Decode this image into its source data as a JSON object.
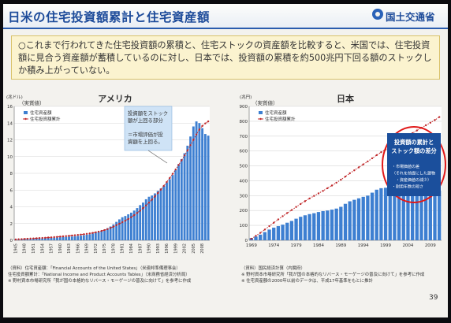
{
  "slide": {
    "title": "日米の住宅投資額累計と住宅資産額",
    "ministry": "国土交通省",
    "summary": "○これまで行われてきた住宅投資額の累積と、住宅ストックの資産額を比較すると、米国では、住宅投資額に見合う資産額が蓄積しているのに対し、日本では、投資額の累積を約500兆円下回る額のストックしか積み上がっていない。",
    "page_number": "39",
    "sources_left": [
      "（資料）住宅資産額：「Financial Accounts of the United States」（米連邦準備理事会）",
      "住宅投資額累計：「National Income and Product Accounts Tables」（米商務省経済分析局）",
      "※ 野村資本市場研究所「我が国の本格的なリバース・モーゲージの普及に向けて」を参考に作成"
    ],
    "sources_right": [
      "（資料）国民経済計算（内閣府）",
      "※ 野村資本市場研究所「我が国の本格的なリバース・モーゲージの普及に向けて」を参考に作成",
      "※ 住宅資産額の2000年以前のデータは、平成17年基準をもとに推計"
    ]
  },
  "chart_data": [
    {
      "type": "bar",
      "title": "アメリカ",
      "subtitle": "（実質値）",
      "unit_label": "(兆ドル)",
      "ylim": [
        0,
        16
      ],
      "y_ticks": [
        "0",
        "2",
        "4",
        "6",
        "8",
        "10",
        "12",
        "14",
        "16"
      ],
      "x_ticks": [
        "1945",
        "1948",
        "1951",
        "1954",
        "1957",
        "1960",
        "1963",
        "1966",
        "1969",
        "1972",
        "1975",
        "1978",
        "1981",
        "1984",
        "1987",
        "1990",
        "1993",
        "1996",
        "1999",
        "2002",
        "2005",
        "2008"
      ],
      "grid": true,
      "legend_position": "top-left",
      "x": [
        1945,
        1946,
        1947,
        1948,
        1949,
        1950,
        1951,
        1952,
        1953,
        1954,
        1955,
        1956,
        1957,
        1958,
        1959,
        1960,
        1961,
        1962,
        1963,
        1964,
        1965,
        1966,
        1967,
        1968,
        1969,
        1970,
        1971,
        1972,
        1973,
        1974,
        1975,
        1976,
        1977,
        1978,
        1979,
        1980,
        1981,
        1982,
        1983,
        1984,
        1985,
        1986,
        1987,
        1988,
        1989,
        1990,
        1991,
        1992,
        1993,
        1994,
        1995,
        1996,
        1997,
        1998,
        1999,
        2000,
        2001,
        2002,
        2003,
        2004,
        2005,
        2006,
        2007,
        2008,
        2009,
        2010
      ],
      "series": [
        {
          "name": "住宅資産額",
          "kind": "bar",
          "color": "#3d7fd1",
          "values": [
            0.1,
            0.11,
            0.12,
            0.13,
            0.15,
            0.16,
            0.18,
            0.2,
            0.21,
            0.23,
            0.25,
            0.27,
            0.29,
            0.31,
            0.33,
            0.36,
            0.38,
            0.4,
            0.43,
            0.45,
            0.48,
            0.52,
            0.55,
            0.6,
            0.66,
            0.72,
            0.8,
            0.9,
            1.02,
            1.15,
            1.28,
            1.45,
            1.65,
            1.9,
            2.2,
            2.5,
            2.75,
            2.9,
            3.1,
            3.3,
            3.55,
            3.85,
            4.2,
            4.5,
            4.9,
            5.2,
            5.35,
            5.6,
            5.9,
            6.2,
            6.5,
            6.9,
            7.3,
            7.8,
            8.4,
            9.1,
            9.7,
            10.4,
            11.3,
            12.4,
            13.6,
            14.2,
            14.0,
            13.4,
            12.7,
            12.5
          ]
        },
        {
          "name": "住宅投資額累計",
          "kind": "line",
          "color": "#c0282a",
          "values": [
            0.1,
            0.12,
            0.14,
            0.16,
            0.18,
            0.2,
            0.22,
            0.24,
            0.26,
            0.28,
            0.3,
            0.33,
            0.35,
            0.38,
            0.41,
            0.44,
            0.47,
            0.5,
            0.53,
            0.57,
            0.6,
            0.64,
            0.68,
            0.72,
            0.77,
            0.82,
            0.88,
            0.95,
            1.03,
            1.12,
            1.22,
            1.34,
            1.48,
            1.63,
            1.8,
            1.98,
            2.16,
            2.34,
            2.54,
            2.76,
            3.0,
            3.26,
            3.54,
            3.84,
            4.16,
            4.5,
            4.86,
            5.24,
            5.64,
            6.06,
            6.5,
            6.96,
            7.44,
            7.94,
            8.46,
            9.0,
            9.56,
            10.14,
            10.74,
            11.36,
            12.0,
            12.64,
            13.22,
            13.66,
            13.96,
            14.2
          ]
        }
      ],
      "annotations": [
        "投資額をストック額が上回る部分",
        "＝市場評価が投資額を上回る。"
      ]
    },
    {
      "type": "bar",
      "title": "日本",
      "subtitle": "（実質値）",
      "unit_label": "(兆円)",
      "ylim": [
        0,
        900
      ],
      "y_ticks": [
        "0",
        "100",
        "200",
        "300",
        "400",
        "500",
        "600",
        "700",
        "800",
        "900"
      ],
      "x_ticks": [
        "1969",
        "1974",
        "1979",
        "1984",
        "1989",
        "1994",
        "1999",
        "2004",
        "2009"
      ],
      "grid": true,
      "legend_position": "top-left",
      "x": [
        1969,
        1970,
        1971,
        1972,
        1973,
        1974,
        1975,
        1976,
        1977,
        1978,
        1979,
        1980,
        1981,
        1982,
        1983,
        1984,
        1985,
        1986,
        1987,
        1988,
        1989,
        1990,
        1991,
        1992,
        1993,
        1994,
        1995,
        1996,
        1997,
        1998,
        1999,
        2000,
        2001,
        2002,
        2003,
        2004,
        2005,
        2006,
        2007,
        2008,
        2009,
        2010,
        2011
      ],
      "series": [
        {
          "name": "住宅資産額",
          "kind": "bar",
          "color": "#3d7fd1",
          "values": [
            15,
            25,
            38,
            55,
            72,
            85,
            95,
            105,
            118,
            130,
            145,
            158,
            168,
            176,
            182,
            190,
            196,
            200,
            206,
            213,
            225,
            245,
            262,
            272,
            282,
            292,
            300,
            320,
            340,
            350,
            353,
            350,
            345,
            343,
            342,
            341,
            340,
            338,
            336,
            338,
            335,
            336,
            334
          ]
        },
        {
          "name": "住宅投資額累計",
          "kind": "line",
          "color": "#c0282a",
          "values": [
            10,
            30,
            50,
            72,
            95,
            118,
            140,
            162,
            183,
            203,
            224,
            244,
            263,
            281,
            298,
            315,
            332,
            350,
            368,
            387,
            407,
            428,
            450,
            470,
            490,
            510,
            530,
            551,
            572,
            592,
            611,
            630,
            648,
            666,
            684,
            702,
            720,
            738,
            756,
            773,
            790,
            808,
            828
          ]
        }
      ],
      "annotations": [
        "投資額の累計と",
        "ストック額の差分",
        "・市場価値の差",
        "（それを前提にした建物",
        "　・資産価値の減少）",
        "・耐用年数の短さ"
      ]
    }
  ]
}
